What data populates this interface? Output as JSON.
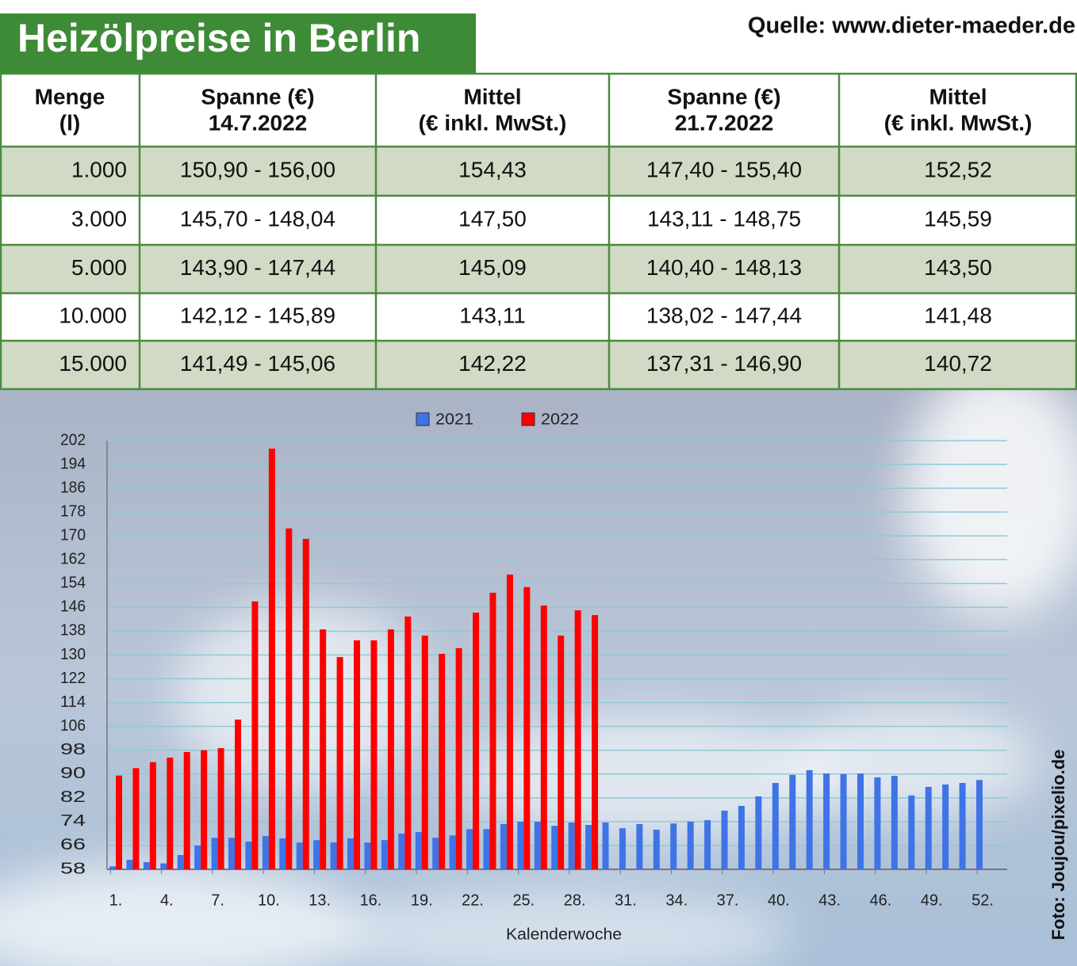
{
  "header": {
    "title": "Heizölpreise in Berlin",
    "source": "Quelle: www.dieter-maeder.de"
  },
  "table": {
    "columns": [
      [
        "Menge",
        "(l)"
      ],
      [
        "Spanne (€)",
        "14.7.2022"
      ],
      [
        "Mittel",
        "(€ inkl. MwSt.)"
      ],
      [
        "Spanne (€)",
        "21.7.2022"
      ],
      [
        "Mittel",
        "(€ inkl. MwSt.)"
      ]
    ],
    "rows": [
      [
        "1.000",
        "150,90 - 156,00",
        "154,43",
        "147,40 - 155,40",
        "152,52"
      ],
      [
        "3.000",
        "145,70 - 148,04",
        "147,50",
        "143,11 - 148,75",
        "145,59"
      ],
      [
        "5.000",
        "143,90 - 147,44",
        "145,09",
        "140,40 - 148,13",
        "143,50"
      ],
      [
        "10.000",
        "142,12 - 145,89",
        "143,11",
        "138,02 - 147,44",
        "141,48"
      ],
      [
        "15.000",
        "141,49 - 145,06",
        "142,22",
        "137,31 - 146,90",
        "140,72"
      ]
    ]
  },
  "photo_credit": "Foto: Joujou/pixelio.de",
  "chart_data": {
    "type": "bar",
    "x_label": "Kalenderwoche",
    "categories": [
      "1.",
      null,
      null,
      "4.",
      null,
      null,
      "7.",
      null,
      null,
      "10.",
      null,
      null,
      "13.",
      null,
      null,
      "16.",
      null,
      null,
      "19.",
      null,
      null,
      "22.",
      null,
      null,
      "25.",
      null,
      null,
      "28.",
      null,
      null,
      "31.",
      null,
      null,
      "34.",
      null,
      null,
      "37.",
      null,
      null,
      "40.",
      null,
      null,
      "43.",
      null,
      null,
      "46.",
      null,
      null,
      "49.",
      null,
      null,
      "52."
    ],
    "series": [
      {
        "name": "2021",
        "color": "#3f73e6",
        "values": [
          59,
          61.2,
          60.4,
          60,
          62.8,
          66,
          68.6,
          68.6,
          67.3,
          69.2,
          68.4,
          67,
          67.8,
          67,
          68.4,
          67,
          67.8,
          70,
          70.5,
          68.6,
          69.4,
          71.5,
          71.5,
          73.2,
          74,
          74,
          72.6,
          73.7,
          72.9,
          73.7,
          71.8,
          73.2,
          71.3,
          73.4,
          74,
          74.5,
          77.7,
          79.3,
          82.5,
          87,
          89.7,
          91.3,
          90.2,
          90,
          90.2,
          88.9,
          89.4,
          82.8,
          85.7,
          86.5,
          87,
          88
        ]
      },
      {
        "name": "2022",
        "color": "#ff0000",
        "values": [
          89.5,
          92,
          94,
          95.5,
          97.4,
          98,
          98.7,
          108.3,
          148,
          199.3,
          172.5,
          169,
          138.6,
          129.3,
          134.9,
          134.9,
          138.6,
          142.9,
          136.5,
          130.4,
          132.3,
          144.2,
          150.9,
          157,
          152.8,
          146.6,
          136.5,
          145,
          143.4,
          null,
          null,
          null,
          null,
          null,
          null,
          null,
          null,
          null,
          null,
          null,
          null,
          null,
          null,
          null,
          null,
          null,
          null,
          null,
          null,
          null,
          null,
          null
        ]
      }
    ],
    "ylim": [
      58,
      202
    ],
    "yticks": [
      58,
      66,
      74,
      82,
      90,
      98,
      106,
      114,
      122,
      130,
      138,
      146,
      154,
      162,
      170,
      178,
      186,
      194,
      202
    ],
    "grid": true,
    "legend": "top"
  }
}
